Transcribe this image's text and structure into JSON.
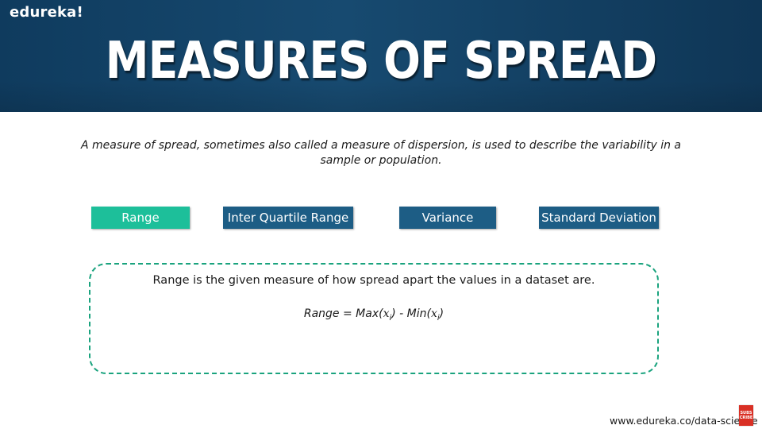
{
  "brand": {
    "logo": "edureka!"
  },
  "slide": {
    "title": "MEASURES OF SPREAD",
    "intro": "A measure of spread, sometimes also called a measure of dispersion, is used to describe the variability in a sample or population."
  },
  "tabs": [
    {
      "label": "Range",
      "active": true
    },
    {
      "label": "Inter Quartile Range",
      "active": false
    },
    {
      "label": "Variance",
      "active": false
    },
    {
      "label": "Standard Deviation",
      "active": false
    }
  ],
  "panel": {
    "description": "Range is the given measure of how spread apart the values in a dataset are.",
    "formula": {
      "lhs": "Range = Max(",
      "var1": "x",
      "sub1": "i",
      "mid": ") - Min(",
      "var2": "x",
      "sub2": "i",
      "end": ")"
    }
  },
  "footer": {
    "url": "www.edureka.co/data-science",
    "subscribe": "SUBSCRIBE"
  },
  "colors": {
    "header": "#174a70",
    "tab_active": "#1dbf9a",
    "tab_inactive": "#1d5d85",
    "panel_border": "#1aa37e",
    "subscribe_badge": "#d93025"
  }
}
